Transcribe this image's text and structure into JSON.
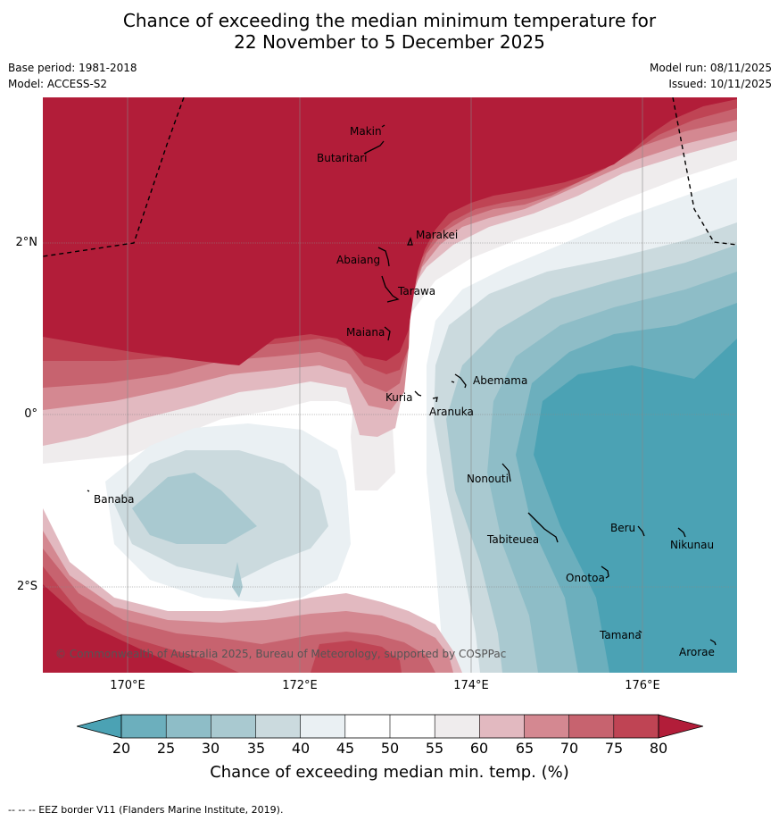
{
  "header": {
    "title_line1": "Chance of exceeding the median minimum temperature for",
    "title_line2": "22 November to 5 December 2025",
    "base_period": "Base period: 1981-2018",
    "model": "Model: ACCESS-S2",
    "model_run": "Model run: 08/11/2025",
    "issued": "Issued: 10/11/2025"
  },
  "map": {
    "x_ticks": [
      "170°E",
      "172°E",
      "174°E",
      "176°E"
    ],
    "y_ticks": [
      "2°N",
      "0°",
      "2°S"
    ],
    "copyright": "© Commonwealth of Australia 2025, Bureau of Meteorology, supported by COSPPac",
    "places": [
      {
        "name": "Makin"
      },
      {
        "name": "Butaritari"
      },
      {
        "name": "Marakei"
      },
      {
        "name": "Abaiang"
      },
      {
        "name": "Tarawa"
      },
      {
        "name": "Maiana"
      },
      {
        "name": "Abemama"
      },
      {
        "name": "Kuria"
      },
      {
        "name": "Aranuka"
      },
      {
        "name": "Banaba"
      },
      {
        "name": "Nonouti"
      },
      {
        "name": "Tabiteuea"
      },
      {
        "name": "Beru"
      },
      {
        "name": "Nikunau"
      },
      {
        "name": "Onotoa"
      },
      {
        "name": "Tamana"
      },
      {
        "name": "Arorae"
      }
    ]
  },
  "legend": {
    "ticks": [
      "20",
      "25",
      "30",
      "35",
      "40",
      "45",
      "50",
      "55",
      "60",
      "65",
      "70",
      "75",
      "80"
    ],
    "label": "Chance of exceeding median min. temp. (%)",
    "colors": {
      "below_20": "#4ba2b4",
      "20-25": "#6cafbd",
      "25-30": "#8ebdc7",
      "30-35": "#a9c9d0",
      "35-40": "#cbdade",
      "40-45": "#eaf0f3",
      "45-50": "#ffffff",
      "50-55": "#ffffff",
      "55-60": "#efeced",
      "60-65": "#e2b9c0",
      "65-70": "#d48891",
      "70-75": "#c7636f",
      "75-80": "#bf4454",
      "above_80": "#b21d39"
    }
  },
  "footer": {
    "eez_note": "-- -- -- EEZ border V11 (Flanders Marine Institute, 2019)."
  }
}
